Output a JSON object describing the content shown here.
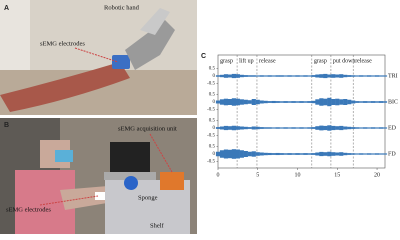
{
  "figure": {
    "panel_labels": [
      "A",
      "B",
      "C"
    ],
    "panel_a": {
      "annotations": [
        "Robotic hand",
        "sEMG electrodes"
      ]
    },
    "panel_b": {
      "annotations": [
        "sEMG acquisition unit",
        "Sponge",
        "sEMG electrodes",
        "Shelf"
      ]
    }
  },
  "chart_data": {
    "type": "emg",
    "xlim": [
      0,
      21
    ],
    "xticks": [
      0,
      5,
      10,
      15,
      20
    ],
    "ylim": [
      -0.8,
      0.8
    ],
    "yticks": [
      0.5,
      0,
      -0.5
    ],
    "phases": {
      "labels": [
        "grasp",
        "lift up",
        "release",
        "grasp",
        "put down",
        "release"
      ],
      "boundaries": [
        2.4,
        4.9,
        11.8,
        14.2,
        17.0
      ]
    },
    "x": [
      0,
      0.5,
      1,
      1.5,
      2,
      2.5,
      3,
      3.5,
      4,
      4.5,
      5,
      5.5,
      6,
      6.5,
      7,
      7.5,
      8,
      8.5,
      9,
      9.5,
      10,
      10.5,
      11,
      11.5,
      12,
      12.5,
      13,
      13.5,
      14,
      14.5,
      15,
      15.5,
      16,
      16.5,
      17,
      17.5,
      18,
      18.5,
      19,
      19.5,
      20,
      20.5,
      21
    ],
    "series": [
      {
        "name": "TRI",
        "color": "#3a78b8",
        "values": [
          0.05,
          0.08,
          0.12,
          0.1,
          0.14,
          0.12,
          0.08,
          0.06,
          0.05,
          0.05,
          0.04,
          0.05,
          0.04,
          0.05,
          0.04,
          0.05,
          0.05,
          0.04,
          0.05,
          0.04,
          0.05,
          0.04,
          0.05,
          0.04,
          0.06,
          0.1,
          0.12,
          0.14,
          0.1,
          0.12,
          0.1,
          0.12,
          0.08,
          0.06,
          0.05,
          0.04,
          0.05,
          0.04,
          0.05,
          0.04,
          0.05,
          0.04,
          0.04
        ]
      },
      {
        "name": "BIC",
        "color": "#3a78b8",
        "values": [
          0.1,
          0.18,
          0.22,
          0.2,
          0.25,
          0.22,
          0.18,
          0.15,
          0.12,
          0.2,
          0.15,
          0.1,
          0.08,
          0.06,
          0.07,
          0.06,
          0.05,
          0.06,
          0.05,
          0.06,
          0.05,
          0.06,
          0.05,
          0.06,
          0.08,
          0.18,
          0.25,
          0.22,
          0.28,
          0.2,
          0.22,
          0.18,
          0.2,
          0.15,
          0.1,
          0.06,
          0.05,
          0.06,
          0.05,
          0.06,
          0.05,
          0.06,
          0.05
        ]
      },
      {
        "name": "ED",
        "color": "#3a78b8",
        "values": [
          0.06,
          0.1,
          0.14,
          0.12,
          0.15,
          0.12,
          0.1,
          0.08,
          0.06,
          0.1,
          0.08,
          0.06,
          0.05,
          0.05,
          0.04,
          0.05,
          0.04,
          0.05,
          0.04,
          0.05,
          0.04,
          0.05,
          0.04,
          0.05,
          0.06,
          0.12,
          0.16,
          0.14,
          0.18,
          0.14,
          0.12,
          0.14,
          0.1,
          0.08,
          0.06,
          0.05,
          0.04,
          0.05,
          0.04,
          0.05,
          0.04,
          0.05,
          0.04
        ]
      },
      {
        "name": "FD",
        "color": "#3a78b8",
        "values": [
          0.15,
          0.25,
          0.3,
          0.28,
          0.32,
          0.3,
          0.25,
          0.2,
          0.15,
          0.18,
          0.12,
          0.1,
          0.08,
          0.07,
          0.06,
          0.07,
          0.06,
          0.05,
          0.06,
          0.05,
          0.06,
          0.05,
          0.06,
          0.05,
          0.06,
          0.1,
          0.14,
          0.12,
          0.15,
          0.12,
          0.1,
          0.12,
          0.08,
          0.06,
          0.05,
          0.04,
          0.05,
          0.04,
          0.05,
          0.04,
          0.05,
          0.04,
          0.04
        ]
      }
    ]
  }
}
